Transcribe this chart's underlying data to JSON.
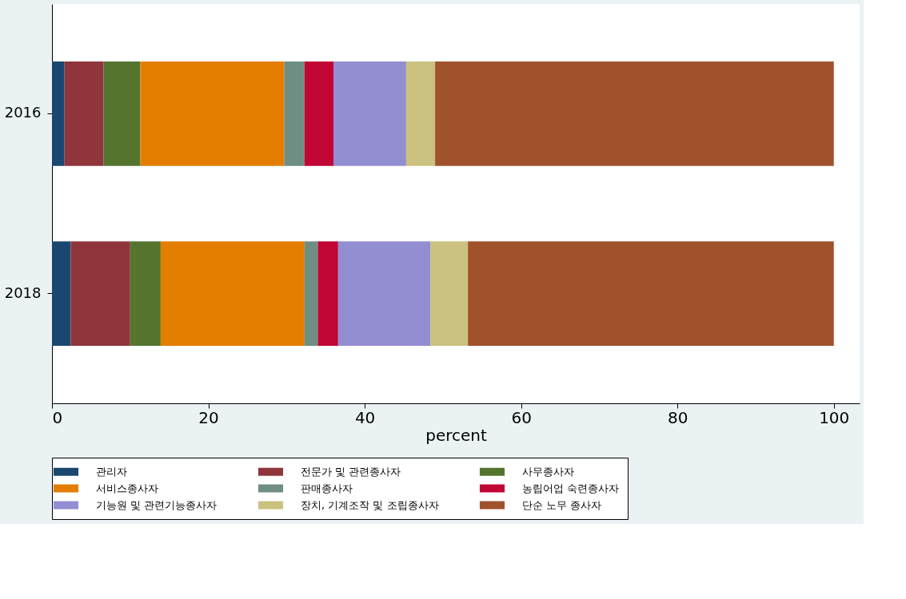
{
  "chart_data": {
    "type": "bar",
    "orientation": "horizontal",
    "stacked": true,
    "xlabel": "percent",
    "categories": [
      "2016",
      "2018"
    ],
    "series": [
      {
        "name": "관리자",
        "color": "#1a476f",
        "values": [
          1.6,
          2.4
        ]
      },
      {
        "name": "전문가 및 관련종사자",
        "color": "#90353b",
        "values": [
          5.0,
          7.6
        ]
      },
      {
        "name": "사무종사자",
        "color": "#55752f",
        "values": [
          4.7,
          3.9
        ]
      },
      {
        "name": "서비스종사자",
        "color": "#e37e00",
        "values": [
          18.4,
          18.4
        ]
      },
      {
        "name": "판매종사자",
        "color": "#6e8e84",
        "values": [
          2.6,
          1.7
        ]
      },
      {
        "name": "농립어업 숙련종사자",
        "color": "#c10534",
        "values": [
          3.7,
          2.6
        ]
      },
      {
        "name": "기능원 및 관련기능종사자",
        "color": "#938dd2",
        "values": [
          9.3,
          11.8
        ]
      },
      {
        "name": "장치, 기계조작 및 조립종사자",
        "color": "#cac27e",
        "values": [
          3.7,
          4.8
        ]
      },
      {
        "name": "단순 노무 종사자",
        "color": "#a0522d",
        "values": [
          51.0,
          46.8
        ]
      }
    ],
    "xlim": [
      0,
      103.3
    ],
    "xticks": [
      0,
      20,
      40,
      60,
      80,
      100
    ],
    "grid": false,
    "legend": "bottom"
  }
}
